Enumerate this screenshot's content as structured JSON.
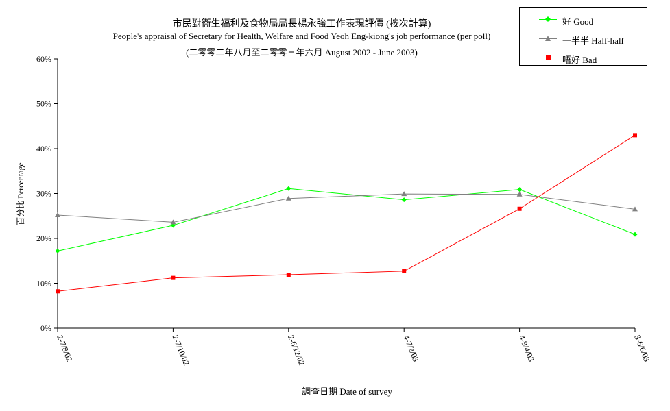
{
  "chart_data": {
    "type": "line",
    "title": "市民對衞生福利及食物局局長楊永強工作表現評價 (按次計算)",
    "subtitle": "People's appraisal of Secretary for Health, Welfare and Food Yeoh Eng-kiong's job performance (per poll)",
    "subtitle2": "(二零零二年八月至二零零三年六月 August 2002 - June 2003)",
    "xlabel": "調查日期 Date of survey",
    "ylabel": "百分比 Percentage",
    "categories": [
      "2-7/8/02",
      "2-7/10/02",
      "2-6/12/02",
      "4-7/2/03",
      "4-9/4/03",
      "3-6/6/03"
    ],
    "ylim": [
      0,
      60
    ],
    "yticks": [
      "0%",
      "10%",
      "20%",
      "30%",
      "40%",
      "50%",
      "60%"
    ],
    "grid": false,
    "legend_position": "top-right",
    "series": [
      {
        "name": "好 Good",
        "color": "#00ff00",
        "marker": "diamond",
        "values": [
          17.2,
          22.9,
          31.1,
          28.6,
          30.9,
          20.9
        ]
      },
      {
        "name": "一半半 Half-half",
        "color": "#808080",
        "marker": "triangle",
        "values": [
          25.2,
          23.6,
          28.9,
          29.9,
          29.8,
          26.5
        ]
      },
      {
        "name": "唔好 Bad",
        "color": "#ff0000",
        "marker": "square",
        "values": [
          8.2,
          11.2,
          11.9,
          12.7,
          26.6,
          43.0
        ]
      }
    ]
  }
}
